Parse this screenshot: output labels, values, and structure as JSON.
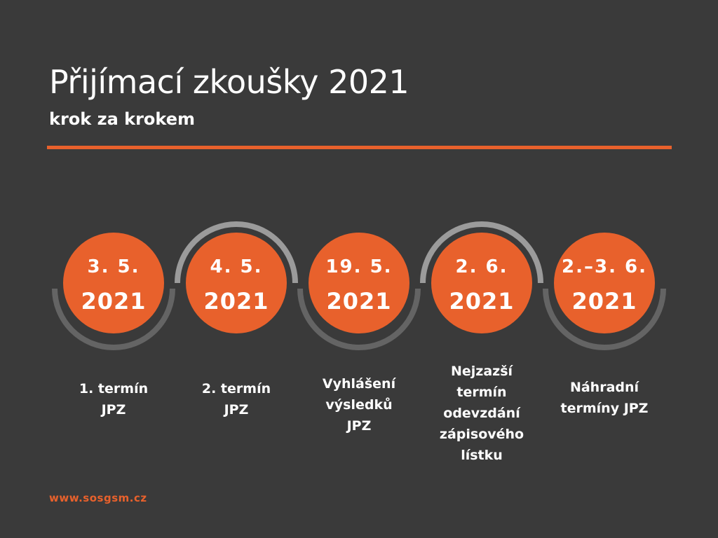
{
  "colors": {
    "background": "#3a3a3a",
    "accent": "#e8612c",
    "arc_dark": "#646464",
    "arc_light": "#9b9b9b",
    "text": "#ffffff"
  },
  "header": {
    "title": "Přijímací zkoušky 2021",
    "subtitle": "krok za krokem"
  },
  "steps": [
    {
      "date": "3. 5.",
      "year": "2021",
      "caption": [
        "1. termín",
        "JPZ"
      ]
    },
    {
      "date": "4. 5.",
      "year": "2021",
      "caption": [
        "2. termín",
        "JPZ"
      ]
    },
    {
      "date": "19. 5.",
      "year": "2021",
      "caption": [
        "Vyhlášení",
        "výsledků",
        "JPZ"
      ]
    },
    {
      "date": "2. 6.",
      "year": "2021",
      "caption": [
        "Nejzazší",
        "termín",
        "odevzdání",
        "zápisového",
        "lístku"
      ]
    },
    {
      "date": "2.–3. 6.",
      "year": "2021",
      "caption": [
        "Náhradní",
        "termíny JPZ"
      ]
    }
  ],
  "footer": {
    "website": "www.sosgsm.cz"
  }
}
